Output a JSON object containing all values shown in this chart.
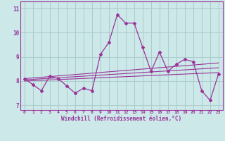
{
  "title": "",
  "xlabel": "Windchill (Refroidissement éolien,°C)",
  "bg_color": "#cce8e8",
  "grid_color": "#aacccc",
  "line_color": "#993399",
  "spine_color": "#993399",
  "xlim": [
    -0.5,
    23.5
  ],
  "ylim": [
    6.8,
    11.3
  ],
  "yticks": [
    7,
    8,
    9,
    10,
    11
  ],
  "xticks": [
    0,
    1,
    2,
    3,
    4,
    5,
    6,
    7,
    8,
    9,
    10,
    11,
    12,
    13,
    14,
    15,
    16,
    17,
    18,
    19,
    20,
    21,
    22,
    23
  ],
  "series1": [
    8.1,
    7.85,
    7.6,
    8.2,
    8.1,
    7.8,
    7.5,
    7.7,
    7.6,
    9.1,
    9.6,
    10.75,
    10.4,
    10.4,
    9.4,
    8.4,
    9.2,
    8.4,
    8.7,
    8.9,
    8.8,
    7.6,
    7.2,
    8.3
  ],
  "trend1_x": [
    0,
    23
  ],
  "trend1_y": [
    8.0,
    8.35
  ],
  "trend2_x": [
    0,
    23
  ],
  "trend2_y": [
    8.05,
    8.55
  ],
  "trend3_x": [
    0,
    23
  ],
  "trend3_y": [
    8.1,
    8.75
  ],
  "figsize": [
    3.2,
    2.0
  ],
  "dpi": 100
}
